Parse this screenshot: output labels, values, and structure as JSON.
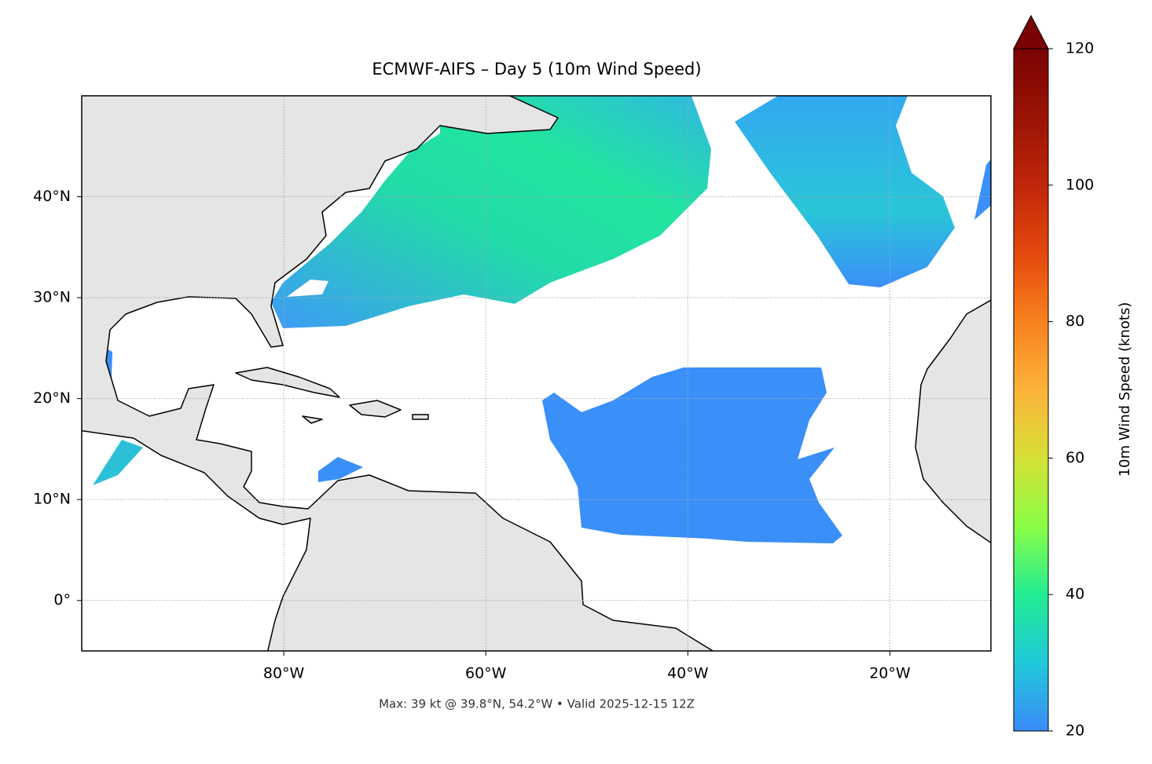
{
  "map": {
    "title": "ECMWF-AIFS – Day 5 (10m Wind Speed)",
    "footer": "Max: 39 kt @ 39.8°N, 54.2°W • Valid 2025-12-15 12Z",
    "xlim": [
      -100,
      -10
    ],
    "ylim": [
      -5,
      50
    ],
    "xticks": [
      {
        "value": -80,
        "label": "80°W"
      },
      {
        "value": -60,
        "label": "60°W"
      },
      {
        "value": -40,
        "label": "40°W"
      },
      {
        "value": -20,
        "label": "20°W"
      }
    ],
    "yticks": [
      {
        "value": 0,
        "label": "0°"
      },
      {
        "value": 10,
        "label": "10°N"
      },
      {
        "value": 20,
        "label": "20°N"
      },
      {
        "value": 30,
        "label": "30°N"
      },
      {
        "value": 40,
        "label": "40°N"
      }
    ],
    "grid": true,
    "colorbar": {
      "label": "10m Wind Speed (knots)",
      "lim": [
        20,
        120
      ],
      "ticks": [
        20,
        40,
        60,
        80,
        100,
        120
      ],
      "colors": [
        "#3b8bf8",
        "#1fc9d9",
        "#22ec93",
        "#8afe45",
        "#d6e035",
        "#fdb33a",
        "#f8811e",
        "#e4480d",
        "#c0260a",
        "#9a1305",
        "#7a0403"
      ]
    }
  }
}
